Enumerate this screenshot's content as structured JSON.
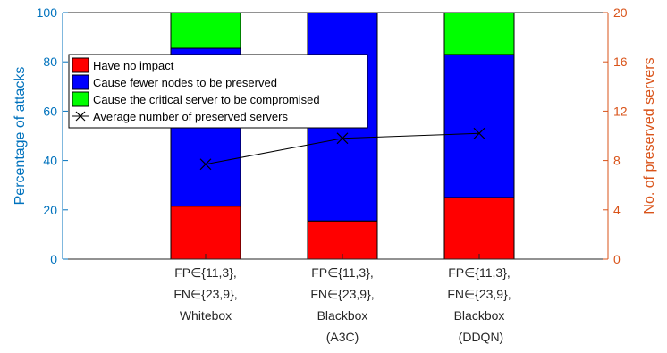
{
  "chart_data": {
    "type": "bar",
    "stacked": true,
    "categories": [
      [
        "FP∈{11,3},",
        "FN∈{23,9},",
        "Whitebox"
      ],
      [
        "FP∈{11,3},",
        "FN∈{23,9},",
        "Blackbox",
        "(A3C)"
      ],
      [
        "FP∈{11,3},",
        "FN∈{23,9},",
        "Blackbox",
        " (DDQN)"
      ]
    ],
    "series": [
      {
        "name": "Have no impact",
        "color": "#ff0000",
        "values": [
          21.5,
          15.5,
          25
        ]
      },
      {
        "name": "Cause fewer nodes to be preserved",
        "color": "#0000ff",
        "values": [
          64,
          84.5,
          58
        ]
      },
      {
        "name": "Cause the critical server to be compromised",
        "color": "#00ff00",
        "values": [
          14.5,
          0,
          17
        ]
      }
    ],
    "line_series": {
      "name": "Average number of preserved servers",
      "axis": "right",
      "color": "#000000",
      "marker": "x",
      "values": [
        7.7,
        9.8,
        10.2
      ]
    },
    "ylabel_left": "Percentage of attacks",
    "ylabel_right": "No. of preserved servers",
    "ylim_left": [
      0,
      100
    ],
    "ylim_right": [
      0,
      20
    ],
    "yticks_left": [
      "0",
      "20",
      "40",
      "60",
      "80",
      "100"
    ],
    "yticks_right": [
      "0",
      "4",
      "8",
      "12",
      "16",
      "20"
    ],
    "legend_position": "top-left",
    "grid": false
  }
}
